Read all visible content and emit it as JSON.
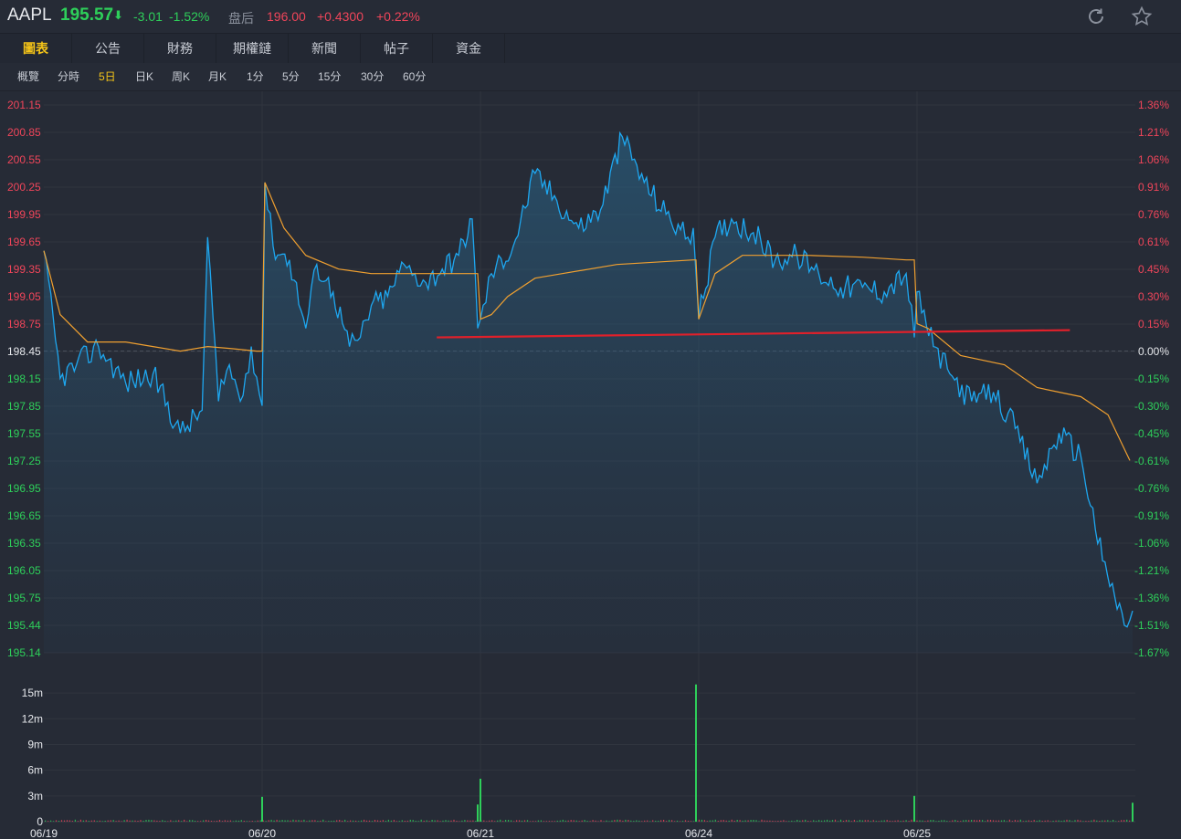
{
  "header": {
    "symbol": "AAPL",
    "price": "195.57",
    "arrow": "⬇",
    "change": "-3.01",
    "change_pct": "-1.52%",
    "after_hours_label": "盘后",
    "after_hours_price": "196.00",
    "after_hours_change": "+0.4300",
    "after_hours_pct": "+0.22%",
    "icons": [
      "refresh-icon",
      "star-icon"
    ]
  },
  "tabs": [
    {
      "label": "圖表",
      "active": true
    },
    {
      "label": "公告"
    },
    {
      "label": "財務"
    },
    {
      "label": "期權鏈"
    },
    {
      "label": "新聞"
    },
    {
      "label": "帖子"
    },
    {
      "label": "資金"
    }
  ],
  "periods": [
    {
      "label": "概覽"
    },
    {
      "label": "分時"
    },
    {
      "label": "5日",
      "active": true
    },
    {
      "label": "日K"
    },
    {
      "label": "周K"
    },
    {
      "label": "月K"
    },
    {
      "label": "1分"
    },
    {
      "label": "5分"
    },
    {
      "label": "15分"
    },
    {
      "label": "30分"
    },
    {
      "label": "60分"
    }
  ],
  "colors": {
    "up": "#f0455a",
    "down": "#2ecf5a",
    "price_line": "#1ea7f0",
    "avg_line": "#f0a030",
    "annotation": "#e0202a",
    "highlight": "#f5c518"
  },
  "chart_data": [
    {
      "type": "line",
      "title": "",
      "x_tick_labels": [
        "06/19",
        "06/20",
        "06/21",
        "06/24",
        "06/25"
      ],
      "ylim": [
        195.14,
        201.15
      ],
      "reference_price": 198.45,
      "y_tick_labels": [
        "201.15",
        "200.85",
        "200.55",
        "200.25",
        "199.95",
        "199.65",
        "199.35",
        "199.05",
        "198.75",
        "198.45",
        "198.15",
        "197.85",
        "197.55",
        "197.25",
        "196.95",
        "196.65",
        "196.35",
        "196.05",
        "195.75",
        "195.44",
        "195.14"
      ],
      "y2_tick_labels": [
        "1.36%",
        "1.21%",
        "1.06%",
        "0.91%",
        "0.76%",
        "0.61%",
        "0.45%",
        "0.30%",
        "0.15%",
        "0.00%",
        "-0.15%",
        "-0.30%",
        "-0.45%",
        "-0.61%",
        "-0.76%",
        "-0.91%",
        "-1.06%",
        "-1.21%",
        "-1.36%",
        "-1.51%",
        "-1.67%"
      ],
      "grid": true,
      "series": [
        {
          "role": "price",
          "x": [
            0,
            0.3,
            0.6,
            1.0,
            1.5,
            2.0,
            2.5,
            2.9,
            3.0,
            3.2,
            3.4,
            3.6,
            3.8,
            4.0,
            4.05,
            4.2,
            4.5,
            4.8,
            5.0,
            5.3,
            5.6,
            5.8,
            6.0,
            6.3,
            6.6,
            6.8,
            7.0,
            7.3,
            7.6,
            7.85,
            7.95,
            8.0,
            8.2,
            8.6,
            9.0,
            9.4,
            9.8,
            10.2,
            10.6,
            11.0,
            11.4,
            11.8,
            11.9,
            12.0,
            12.3,
            12.6,
            13.0,
            13.4,
            13.8,
            14.2,
            14.6,
            15.0,
            15.4,
            15.8,
            15.95,
            16.0,
            16.3,
            16.6,
            17.0,
            17.4,
            17.8,
            18.2,
            18.6,
            19.0,
            19.4,
            19.8,
            19.95
          ],
          "y": [
            199.55,
            198.15,
            198.3,
            198.5,
            198.1,
            198.2,
            197.55,
            197.8,
            199.7,
            197.9,
            198.3,
            197.9,
            198.5,
            197.85,
            200.3,
            199.6,
            199.45,
            198.7,
            199.4,
            199.1,
            198.5,
            198.6,
            198.95,
            199.05,
            199.4,
            199.3,
            199.2,
            199.35,
            199.5,
            199.9,
            198.7,
            198.8,
            199.3,
            199.6,
            200.4,
            200.1,
            199.8,
            200.0,
            200.8,
            200.3,
            199.95,
            199.7,
            199.8,
            198.8,
            199.7,
            199.9,
            199.75,
            199.45,
            199.5,
            199.3,
            199.15,
            199.15,
            199.1,
            199.3,
            198.6,
            199.1,
            198.5,
            198.2,
            197.9,
            198.0,
            197.6,
            197.0,
            197.55,
            197.3,
            196.15,
            195.44,
            195.6
          ]
        },
        {
          "role": "average",
          "x": [
            0,
            0.3,
            0.8,
            1.5,
            2.0,
            2.5,
            3.0,
            3.4,
            3.9,
            4.0,
            4.05,
            4.4,
            4.8,
            5.4,
            6.0,
            7.0,
            7.9,
            7.95,
            8.0,
            8.2,
            8.5,
            9.0,
            9.5,
            10.5,
            11.9,
            11.95,
            12.0,
            12.3,
            12.8,
            14.0,
            15.0,
            15.8,
            15.95,
            16.0,
            16.2,
            16.8,
            17.6,
            18.2,
            19.0,
            19.5,
            19.9
          ],
          "y": [
            199.55,
            198.85,
            198.55,
            198.55,
            198.5,
            198.45,
            198.5,
            198.48,
            198.45,
            198.45,
            200.3,
            199.8,
            199.5,
            199.35,
            199.3,
            199.3,
            199.3,
            199.3,
            198.8,
            198.85,
            199.05,
            199.25,
            199.3,
            199.4,
            199.45,
            199.45,
            198.8,
            199.3,
            199.5,
            199.5,
            199.48,
            199.45,
            199.45,
            198.75,
            198.7,
            198.4,
            198.3,
            198.05,
            197.95,
            197.75,
            197.25
          ]
        }
      ],
      "annotations": [
        {
          "type": "trendline",
          "x": [
            7.2,
            18.8
          ],
          "y": [
            198.6,
            198.68
          ]
        }
      ]
    },
    {
      "type": "bar",
      "title": "",
      "y_tick_labels": [
        "15m",
        "12m",
        "9m",
        "6m",
        "3m",
        "0"
      ],
      "ylim": [
        0,
        16.5
      ],
      "baseline_volume": 0.15,
      "spikes": [
        {
          "x": 4.0,
          "value": 2.9
        },
        {
          "x": 7.95,
          "value": 2.0
        },
        {
          "x": 8.0,
          "value": 5.0
        },
        {
          "x": 11.95,
          "value": 16.0
        },
        {
          "x": 15.95,
          "value": 3.0
        },
        {
          "x": 19.95,
          "value": 2.2
        }
      ]
    }
  ]
}
